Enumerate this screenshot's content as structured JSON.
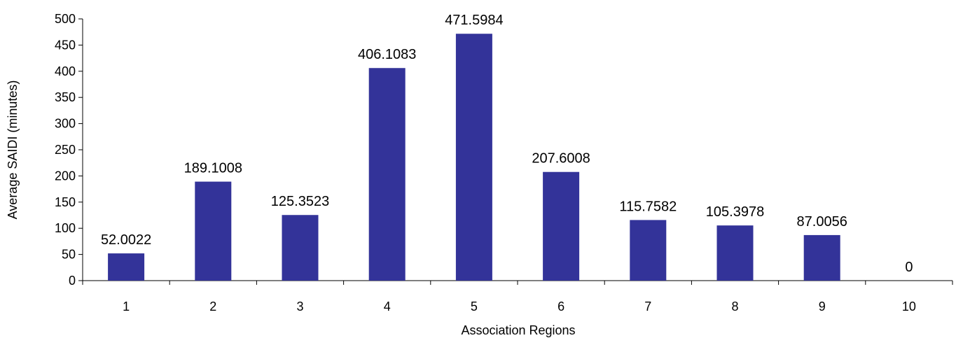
{
  "chart_data": {
    "type": "bar",
    "categories": [
      "1",
      "2",
      "3",
      "4",
      "5",
      "6",
      "7",
      "8",
      "9",
      "10"
    ],
    "values": [
      52.0022,
      189.1008,
      125.3523,
      406.1083,
      471.5984,
      207.6008,
      115.7582,
      105.3978,
      87.0056,
      0
    ],
    "data_labels": [
      "52.0022",
      "189.1008",
      "125.3523",
      "406.1083",
      "471.5984",
      "207.6008",
      "115.7582",
      "105.3978",
      "87.0056",
      "0"
    ],
    "xlabel": "Association Regions",
    "ylabel": "Average SAIDI (minutes)",
    "ylim": [
      0,
      500
    ],
    "yticks": [
      0,
      50,
      100,
      150,
      200,
      250,
      300,
      350,
      400,
      450,
      500
    ],
    "grid": false,
    "legend": "none",
    "bar_color": "#333399"
  }
}
